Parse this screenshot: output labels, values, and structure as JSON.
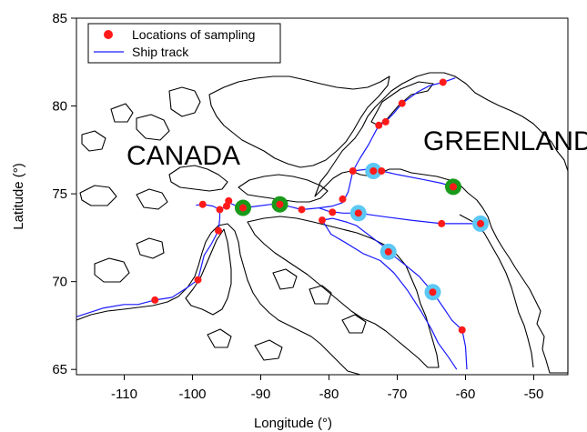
{
  "colors": {
    "sample": "#ff1a1a",
    "track": "#1a1aff",
    "highlight_blue": "#5bc8f5",
    "highlight_green": "#1a9a1a",
    "coast": "#000000"
  },
  "axes": {
    "xlabel": "Longitude (°)",
    "ylabel": "Latitude (°)",
    "xlim": [
      -117,
      -45
    ],
    "ylim": [
      64.7,
      85
    ],
    "xticks": [
      -110,
      -100,
      -90,
      -80,
      -70,
      -60,
      -50
    ],
    "yticks": [
      65,
      70,
      75,
      80,
      85
    ],
    "xtick_labels": [
      "-110",
      "-100",
      "-90",
      "-80",
      "-70",
      "-60",
      "-50"
    ],
    "ytick_labels": [
      "65",
      "70",
      "75",
      "80",
      "85"
    ]
  },
  "legend": {
    "sampling_label": "Locations of sampling",
    "track_label": "Ship track"
  },
  "regions": {
    "canada": "CANADA",
    "greenland": "GREENLAND"
  },
  "stations": [
    {
      "lon": -105.5,
      "lat": 68.95,
      "ring": "none"
    },
    {
      "lon": -99.2,
      "lat": 70.1,
      "ring": "none"
    },
    {
      "lon": -98.5,
      "lat": 74.4,
      "ring": "none"
    },
    {
      "lon": -96.2,
      "lat": 72.9,
      "ring": "none"
    },
    {
      "lon": -96.0,
      "lat": 74.1,
      "ring": "none"
    },
    {
      "lon": -95.0,
      "lat": 74.3,
      "ring": "none"
    },
    {
      "lon": -94.7,
      "lat": 74.6,
      "ring": "none"
    },
    {
      "lon": -92.6,
      "lat": 74.2,
      "ring": "green"
    },
    {
      "lon": -87.2,
      "lat": 74.4,
      "ring": "green"
    },
    {
      "lon": -84.0,
      "lat": 74.1,
      "ring": "none"
    },
    {
      "lon": -81.0,
      "lat": 73.5,
      "ring": "none"
    },
    {
      "lon": -79.5,
      "lat": 73.95,
      "ring": "none"
    },
    {
      "lon": -78.0,
      "lat": 74.7,
      "ring": "none"
    },
    {
      "lon": -76.5,
      "lat": 76.3,
      "ring": "none"
    },
    {
      "lon": -75.7,
      "lat": 73.9,
      "ring": "blue"
    },
    {
      "lon": -73.5,
      "lat": 76.3,
      "ring": "blue"
    },
    {
      "lon": -72.3,
      "lat": 76.3,
      "ring": "none"
    },
    {
      "lon": -72.7,
      "lat": 78.9,
      "ring": "none"
    },
    {
      "lon": -71.7,
      "lat": 79.1,
      "ring": "none"
    },
    {
      "lon": -69.3,
      "lat": 80.15,
      "ring": "none"
    },
    {
      "lon": -71.3,
      "lat": 71.7,
      "ring": "blue"
    },
    {
      "lon": -64.8,
      "lat": 69.4,
      "ring": "blue"
    },
    {
      "lon": -63.3,
      "lat": 81.35,
      "ring": "none"
    },
    {
      "lon": -63.5,
      "lat": 73.3,
      "ring": "none"
    },
    {
      "lon": -61.8,
      "lat": 75.4,
      "ring": "green"
    },
    {
      "lon": -60.5,
      "lat": 67.25,
      "ring": "none"
    },
    {
      "lon": -57.8,
      "lat": 73.3,
      "ring": "blue"
    }
  ],
  "tracks": [
    [
      [
        -117,
        68.0
      ],
      [
        -113,
        68.5
      ],
      [
        -110,
        68.7
      ],
      [
        -108,
        68.7
      ],
      [
        -105.5,
        68.95
      ],
      [
        -103,
        69.1
      ],
      [
        -101,
        69.6
      ],
      [
        -99.2,
        70.1
      ],
      [
        -98.3,
        71.5
      ],
      [
        -97.3,
        72.1
      ],
      [
        -96.2,
        72.9
      ],
      [
        -96.0,
        73.6
      ],
      [
        -96.0,
        74.1
      ],
      [
        -95.0,
        74.3
      ],
      [
        -94.7,
        74.5
      ],
      [
        -93.5,
        74.3
      ],
      [
        -92.6,
        74.2
      ],
      [
        -90.5,
        74.3
      ],
      [
        -88.5,
        74.4
      ],
      [
        -87.2,
        74.4
      ],
      [
        -85.5,
        74.25
      ],
      [
        -84.0,
        74.1
      ],
      [
        -81.5,
        74.2
      ],
      [
        -79.5,
        74.3
      ],
      [
        -78.0,
        74.5
      ]
    ],
    [
      [
        -78.0,
        74.5
      ],
      [
        -77.2,
        75.1
      ],
      [
        -76.5,
        76.3
      ],
      [
        -74.5,
        76.4
      ],
      [
        -73.5,
        76.3
      ],
      [
        -72.3,
        76.3
      ],
      [
        -70,
        76.1
      ],
      [
        -66,
        75.8
      ],
      [
        -63.5,
        75.6
      ],
      [
        -61.8,
        75.4
      ]
    ],
    [
      [
        -76.5,
        76.3
      ],
      [
        -75.5,
        77.0
      ],
      [
        -74.2,
        77.8
      ],
      [
        -72.7,
        78.9
      ],
      [
        -71.7,
        79.1
      ],
      [
        -70.5,
        79.6
      ],
      [
        -69.3,
        80.15
      ],
      [
        -67,
        80.8
      ],
      [
        -65.3,
        81.15
      ],
      [
        -63.3,
        81.35
      ],
      [
        -61.5,
        81.6
      ]
    ],
    [
      [
        -81.5,
        74.2
      ],
      [
        -80.0,
        74.0
      ],
      [
        -78.0,
        73.9
      ],
      [
        -75.7,
        73.9
      ],
      [
        -72.0,
        73.7
      ],
      [
        -68.0,
        73.5
      ],
      [
        -63.5,
        73.3
      ],
      [
        -60.0,
        73.3
      ],
      [
        -57.8,
        73.3
      ]
    ],
    [
      [
        -81.0,
        73.5
      ],
      [
        -79.5,
        73.6
      ],
      [
        -77.5,
        73.4
      ],
      [
        -76.0,
        73.2
      ],
      [
        -74.0,
        72.6
      ],
      [
        -72.3,
        72.1
      ],
      [
        -71.3,
        71.7
      ],
      [
        -69.0,
        71.0
      ],
      [
        -66.8,
        70.3
      ],
      [
        -64.8,
        69.4
      ],
      [
        -63.2,
        68.5
      ],
      [
        -62.0,
        67.8
      ],
      [
        -60.5,
        67.25
      ],
      [
        -60.0,
        66.3
      ],
      [
        -59.8,
        65.0
      ]
    ],
    [
      [
        -81.0,
        73.5
      ],
      [
        -79.7,
        72.7
      ],
      [
        -77.5,
        72.2
      ],
      [
        -75.0,
        71.6
      ],
      [
        -72.5,
        71.2
      ],
      [
        -70.5,
        70.5
      ],
      [
        -68.5,
        69.5
      ],
      [
        -66.5,
        68.3
      ],
      [
        -65.0,
        67.3
      ],
      [
        -64.0,
        66.5
      ],
      [
        -62.5,
        65.7
      ],
      [
        -61.3,
        65.0
      ]
    ],
    [
      [
        -99.5,
        74.35
      ],
      [
        -98.5,
        74.4
      ],
      [
        -97.0,
        74.3
      ],
      [
        -96.0,
        74.1
      ]
    ]
  ]
}
